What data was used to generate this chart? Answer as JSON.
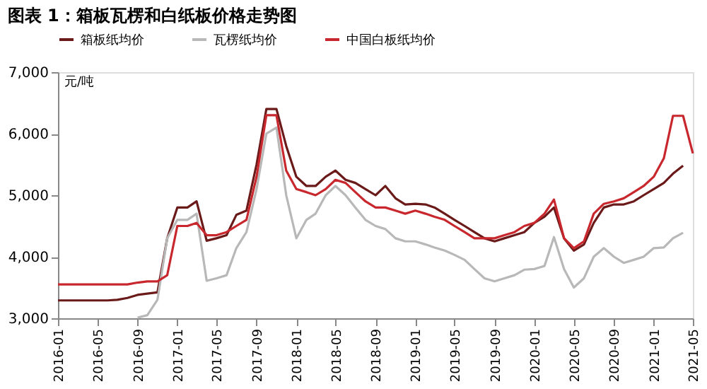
{
  "chart_data": {
    "type": "line",
    "title": "图表 1：箱板瓦楞和白纸板价格走势图",
    "ylabel": "元/吨",
    "x": [
      "2016-01",
      "2016-02",
      "2016-03",
      "2016-04",
      "2016-05",
      "2016-06",
      "2016-07",
      "2016-08",
      "2016-09",
      "2016-10",
      "2016-11",
      "2016-12",
      "2017-01",
      "2017-02",
      "2017-03",
      "2017-04",
      "2017-05",
      "2017-06",
      "2017-07",
      "2017-08",
      "2017-09",
      "2017-10",
      "2017-11",
      "2017-12",
      "2018-01",
      "2018-02",
      "2018-03",
      "2018-04",
      "2018-05",
      "2018-06",
      "2018-07",
      "2018-08",
      "2018-09",
      "2018-10",
      "2018-11",
      "2018-12",
      "2019-01",
      "2019-02",
      "2019-03",
      "2019-04",
      "2019-05",
      "2019-06",
      "2019-07",
      "2019-08",
      "2019-09",
      "2019-10",
      "2019-11",
      "2019-12",
      "2020-01",
      "2020-02",
      "2020-03",
      "2020-04",
      "2020-05",
      "2020-06",
      "2020-07",
      "2020-08",
      "2020-09",
      "2020-10",
      "2020-11",
      "2020-12",
      "2021-01",
      "2021-02",
      "2021-03",
      "2021-04",
      "2021-05"
    ],
    "series": [
      {
        "name": "箱板纸均价",
        "color": "#6b1a1a",
        "values": [
          3290,
          3290,
          3290,
          3290,
          3290,
          3290,
          3300,
          3330,
          3380,
          3400,
          3420,
          4300,
          4800,
          4800,
          4900,
          4260,
          4300,
          4350,
          4680,
          4750,
          5500,
          6400,
          6400,
          5800,
          5300,
          5150,
          5150,
          5300,
          5400,
          5250,
          5200,
          5100,
          5000,
          5150,
          4950,
          4850,
          4860,
          4850,
          4800,
          4700,
          4600,
          4500,
          4400,
          4300,
          4250,
          4300,
          4350,
          4400,
          4550,
          4650,
          4800,
          4300,
          4100,
          4200,
          4550,
          4800,
          4850,
          4850,
          4900,
          5000,
          5100,
          5200,
          5350,
          5480,
          null
        ]
      },
      {
        "name": "瓦楞纸均价",
        "color": "#b8b8b8",
        "values": [
          null,
          null,
          null,
          null,
          null,
          null,
          null,
          null,
          3010,
          3050,
          3300,
          4300,
          4600,
          4600,
          4700,
          3610,
          3650,
          3700,
          4140,
          4400,
          5100,
          6000,
          6100,
          5000,
          4300,
          4600,
          4700,
          5000,
          5150,
          5000,
          4800,
          4600,
          4500,
          4450,
          4300,
          4250,
          4250,
          4200,
          4150,
          4100,
          4030,
          3950,
          3800,
          3650,
          3600,
          3650,
          3700,
          3790,
          3800,
          3850,
          4320,
          3800,
          3500,
          3650,
          4000,
          4140,
          4000,
          3900,
          3950,
          4000,
          4140,
          4150,
          4300,
          4390,
          null
        ]
      },
      {
        "name": "中国白板纸均价",
        "color": "#c8282d",
        "values": [
          3550,
          3550,
          3550,
          3550,
          3550,
          3550,
          3550,
          3550,
          3580,
          3600,
          3600,
          3700,
          4500,
          4500,
          4550,
          4350,
          4350,
          4400,
          4500,
          4600,
          5300,
          6300,
          6300,
          5400,
          5100,
          5050,
          5000,
          5100,
          5250,
          5200,
          5050,
          4900,
          4800,
          4800,
          4750,
          4700,
          4750,
          4700,
          4650,
          4600,
          4500,
          4400,
          4300,
          4300,
          4300,
          4350,
          4400,
          4500,
          4550,
          4700,
          4930,
          4300,
          4140,
          4250,
          4700,
          4860,
          4900,
          4950,
          5050,
          5150,
          5300,
          5600,
          6290,
          6290,
          5680
        ]
      }
    ],
    "xlim": [
      "2016-01",
      "2021-05"
    ],
    "xticks": [
      "2016-01",
      "2016-05",
      "2016-09",
      "2017-01",
      "2017-05",
      "2017-09",
      "2018-01",
      "2018-05",
      "2018-09",
      "2019-01",
      "2019-05",
      "2019-09",
      "2020-01",
      "2020-05",
      "2020-09",
      "2021-01",
      "2021-05"
    ],
    "ylim": [
      3000,
      7000
    ],
    "yticks": [
      {
        "value": 3000,
        "label": "3,000"
      },
      {
        "value": 4000,
        "label": "4,000"
      },
      {
        "value": 5000,
        "label": "5,000"
      },
      {
        "value": 6000,
        "label": "6,000"
      },
      {
        "value": 7000,
        "label": "7,000"
      }
    ],
    "grid": false,
    "legend": "top",
    "marker": "none",
    "line_style": "solid"
  }
}
